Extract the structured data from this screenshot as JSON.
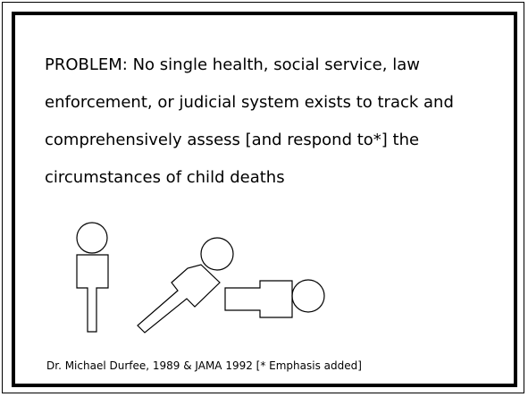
{
  "slide": {
    "problem_lines": [
      "PROBLEM: No single health, social service, law",
      "enforcement, or judicial system exists to track and",
      "comprehensively assess [and respond to*] the",
      "circumstances of child deaths"
    ],
    "citation": "Dr. Michael Durfee, 1989 & JAMA 1992  [* Emphasis added]"
  }
}
